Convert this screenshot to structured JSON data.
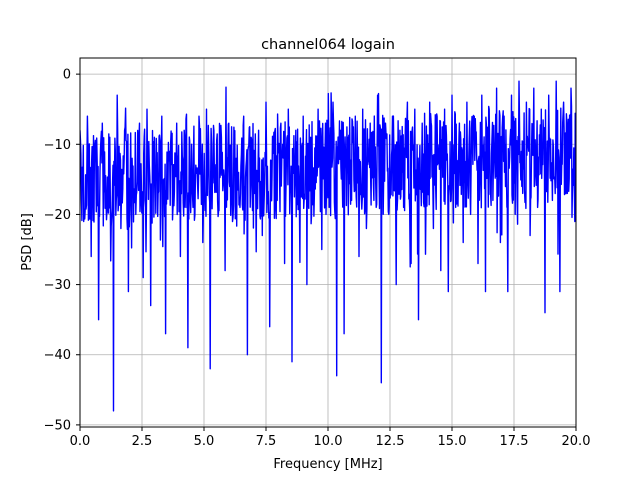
{
  "chart_data": {
    "type": "line",
    "title": "channel064 logain",
    "xlabel": "Frequency [MHz]",
    "ylabel": "PSD [dB]",
    "xlim": [
      0,
      20
    ],
    "ylim": [
      -50.3,
      2.3
    ],
    "xticks": [
      "0.0",
      "2.5",
      "5.0",
      "7.5",
      "10.0",
      "12.5",
      "15.0",
      "17.5",
      "20.0"
    ],
    "yticks": [
      "0",
      "−10",
      "−20",
      "−30",
      "−40",
      "−50"
    ],
    "xtick_values": [
      0,
      2.5,
      5,
      7.5,
      10,
      12.5,
      15,
      17.5,
      20
    ],
    "ytick_values": [
      0,
      -10,
      -20,
      -30,
      -40,
      -50
    ],
    "grid": true,
    "series": [
      {
        "color": "#0000ff",
        "description": "dense noisy PSD trace, ~1024 points; baseline roughly -14 dB rising to -11 dB toward 20 MHz",
        "x": [
          0.0,
          0.15,
          0.3,
          0.45,
          0.6,
          0.75,
          0.9,
          1.05,
          1.2,
          1.35,
          1.5,
          1.65,
          1.8,
          1.95,
          2.1,
          2.25,
          2.4,
          2.55,
          2.7,
          2.85,
          3.0,
          3.15,
          3.3,
          3.45,
          3.6,
          3.75,
          3.9,
          4.05,
          4.2,
          4.35,
          4.5,
          4.65,
          4.8,
          4.95,
          5.1,
          5.25,
          5.4,
          5.55,
          5.7,
          5.85,
          6.0,
          6.15,
          6.3,
          6.45,
          6.6,
          6.75,
          6.9,
          7.05,
          7.2,
          7.35,
          7.5,
          7.65,
          7.8,
          7.95,
          8.1,
          8.25,
          8.4,
          8.55,
          8.7,
          8.85,
          9.0,
          9.15,
          9.3,
          9.45,
          9.6,
          9.75,
          9.9,
          10.05,
          10.2,
          10.35,
          10.5,
          10.65,
          10.8,
          10.95,
          11.1,
          11.25,
          11.4,
          11.55,
          11.7,
          11.85,
          12.0,
          12.15,
          12.3,
          12.45,
          12.6,
          12.75,
          12.9,
          13.05,
          13.2,
          13.35,
          13.5,
          13.65,
          13.8,
          13.95,
          14.1,
          14.25,
          14.4,
          14.55,
          14.7,
          14.85,
          15.0,
          15.15,
          15.3,
          15.45,
          15.6,
          15.75,
          15.9,
          16.05,
          16.2,
          16.35,
          16.5,
          16.65,
          16.8,
          16.95,
          17.1,
          17.25,
          17.4,
          17.55,
          17.7,
          17.85,
          18.0,
          18.15,
          18.3,
          18.45,
          18.6,
          18.75,
          18.9,
          19.05,
          19.2,
          19.35,
          19.5,
          19.65,
          19.8,
          19.95
        ],
        "y": [
          -8,
          -21,
          -6,
          -26,
          -10,
          -35,
          -7,
          -18,
          -9,
          -48,
          -3,
          -22,
          -8,
          -31,
          -12,
          -20,
          -7,
          -29,
          -5,
          -33,
          -9,
          -17,
          -6,
          -37,
          -11,
          -19,
          -7,
          -26,
          -8,
          -39,
          -10,
          -16,
          -6,
          -24,
          -5,
          -42,
          -8,
          -18,
          -9,
          -28,
          -7,
          -21,
          -12,
          -19,
          -6,
          -40,
          -9,
          -17,
          -8,
          -23,
          -4,
          -36,
          -10,
          -18,
          -7,
          -27,
          -5,
          -41,
          -8,
          -20,
          -6,
          -30,
          -9,
          -17,
          -5,
          -25,
          -7,
          -19,
          -4,
          -43,
          -8,
          -37,
          -9,
          -18,
          -6,
          -26,
          -5,
          -22,
          -7,
          -18,
          -3,
          -44,
          -9,
          -20,
          -6,
          -30,
          -8,
          -19,
          -4,
          -27,
          -5,
          -35,
          -7,
          -18,
          -4,
          -22,
          -6,
          -28,
          -5,
          -31,
          -3,
          -19,
          -7,
          -24,
          -4,
          -20,
          -6,
          -27,
          -3,
          -31,
          -5,
          -18,
          -2,
          -24,
          -6,
          -31,
          -3,
          -20,
          -1,
          -17,
          -4,
          -23,
          -2,
          -19,
          -5,
          -34,
          -3,
          -18,
          -1,
          -31,
          -4,
          -17,
          -2,
          -21
        ]
      }
    ]
  }
}
